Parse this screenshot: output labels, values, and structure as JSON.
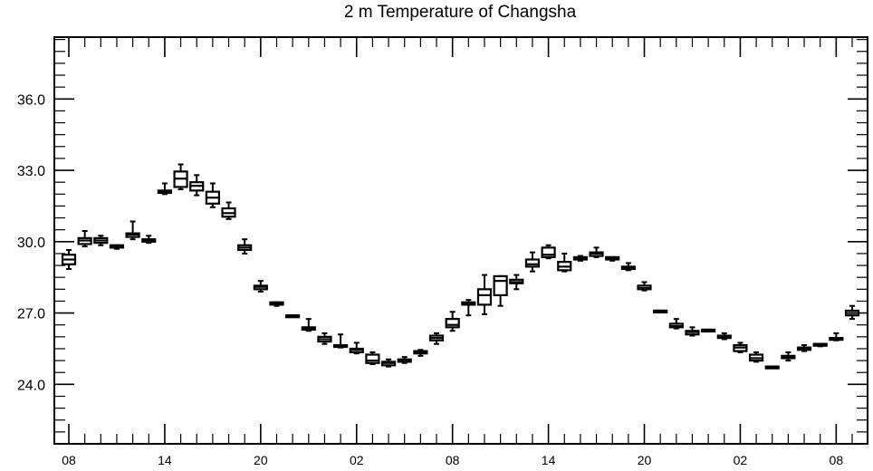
{
  "chart_data": {
    "type": "box",
    "title": "2 m Temperature of Changsha",
    "xlabel": "",
    "ylabel": "",
    "ylim": [
      21.5,
      38.6
    ],
    "y_ticks": [
      24.0,
      27.0,
      30.0,
      33.0,
      36.0
    ],
    "y_tick_labels": [
      "24.0",
      "27.0",
      "30.0",
      "33.0",
      "36.0"
    ],
    "y_minor_step": 0.5,
    "x_range": [
      0,
      49
    ],
    "x_ticks": [
      0,
      6,
      12,
      18,
      24,
      30,
      36,
      42,
      48
    ],
    "x_tick_labels": [
      "08",
      "14",
      "20",
      "02",
      "08",
      "14",
      "20",
      "02",
      "08"
    ],
    "boxes": [
      {
        "x": 0,
        "min": 28.85,
        "q1": 29.05,
        "median": 29.25,
        "q3": 29.45,
        "max": 29.65
      },
      {
        "x": 1,
        "min": 29.8,
        "q1": 29.9,
        "median": 30.05,
        "q3": 30.15,
        "max": 30.45
      },
      {
        "x": 2,
        "min": 29.85,
        "q1": 29.95,
        "median": 30.05,
        "q3": 30.15,
        "max": 30.25
      },
      {
        "x": 3,
        "min": 29.7,
        "q1": 29.75,
        "median": 29.8,
        "q3": 29.85,
        "max": 29.85
      },
      {
        "x": 4,
        "min": 30.1,
        "q1": 30.2,
        "median": 30.3,
        "q3": 30.35,
        "max": 30.85
      },
      {
        "x": 5,
        "min": 29.95,
        "q1": 30.0,
        "median": 30.05,
        "q3": 30.1,
        "max": 30.25
      },
      {
        "x": 6,
        "min": 32.0,
        "q1": 32.05,
        "median": 32.1,
        "q3": 32.15,
        "max": 32.45
      },
      {
        "x": 7,
        "min": 32.2,
        "q1": 32.3,
        "median": 32.65,
        "q3": 32.95,
        "max": 33.25
      },
      {
        "x": 8,
        "min": 31.95,
        "q1": 32.15,
        "median": 32.35,
        "q3": 32.5,
        "max": 32.8
      },
      {
        "x": 9,
        "min": 31.45,
        "q1": 31.6,
        "median": 31.85,
        "q3": 32.1,
        "max": 32.45
      },
      {
        "x": 10,
        "min": 30.95,
        "q1": 31.05,
        "median": 31.2,
        "q3": 31.4,
        "max": 31.65
      },
      {
        "x": 11,
        "min": 29.5,
        "q1": 29.65,
        "median": 29.75,
        "q3": 29.85,
        "max": 30.1
      },
      {
        "x": 12,
        "min": 27.9,
        "q1": 28.0,
        "median": 28.1,
        "q3": 28.15,
        "max": 28.35
      },
      {
        "x": 13,
        "min": 27.3,
        "q1": 27.35,
        "median": 27.4,
        "q3": 27.45,
        "max": 27.45
      },
      {
        "x": 14,
        "min": 26.85,
        "q1": 26.85,
        "median": 26.9,
        "q3": 26.9,
        "max": 26.9
      },
      {
        "x": 15,
        "min": 26.25,
        "q1": 26.3,
        "median": 26.35,
        "q3": 26.4,
        "max": 26.75
      },
      {
        "x": 16,
        "min": 25.7,
        "q1": 25.8,
        "median": 25.9,
        "q3": 26.0,
        "max": 26.15
      },
      {
        "x": 17,
        "min": 25.55,
        "q1": 25.6,
        "median": 25.6,
        "q3": 25.65,
        "max": 26.1
      },
      {
        "x": 18,
        "min": 25.3,
        "q1": 25.35,
        "median": 25.45,
        "q3": 25.5,
        "max": 25.75
      },
      {
        "x": 19,
        "min": 24.85,
        "q1": 24.9,
        "median": 25.0,
        "q3": 25.25,
        "max": 25.35
      },
      {
        "x": 20,
        "min": 24.75,
        "q1": 24.8,
        "median": 24.9,
        "q3": 24.95,
        "max": 25.05
      },
      {
        "x": 21,
        "min": 24.9,
        "q1": 24.95,
        "median": 25.0,
        "q3": 25.05,
        "max": 25.15
      },
      {
        "x": 22,
        "min": 25.2,
        "q1": 25.3,
        "median": 25.35,
        "q3": 25.4,
        "max": 25.45
      },
      {
        "x": 23,
        "min": 25.7,
        "q1": 25.85,
        "median": 25.95,
        "q3": 26.05,
        "max": 26.15
      },
      {
        "x": 24,
        "min": 26.25,
        "q1": 26.4,
        "median": 26.5,
        "q3": 26.75,
        "max": 27.05
      },
      {
        "x": 25,
        "min": 26.9,
        "q1": 27.35,
        "median": 27.4,
        "q3": 27.45,
        "max": 27.55
      },
      {
        "x": 26,
        "min": 26.95,
        "q1": 27.35,
        "median": 27.75,
        "q3": 28.0,
        "max": 28.6
      },
      {
        "x": 27,
        "min": 27.3,
        "q1": 27.75,
        "median": 28.35,
        "q3": 28.55,
        "max": 28.55
      },
      {
        "x": 28,
        "min": 28.0,
        "q1": 28.25,
        "median": 28.3,
        "q3": 28.4,
        "max": 28.6
      },
      {
        "x": 29,
        "min": 28.75,
        "q1": 28.95,
        "median": 29.05,
        "q3": 29.25,
        "max": 29.55
      },
      {
        "x": 30,
        "min": 29.3,
        "q1": 29.35,
        "median": 29.45,
        "q3": 29.75,
        "max": 29.85
      },
      {
        "x": 31,
        "min": 28.75,
        "q1": 28.8,
        "median": 28.95,
        "q3": 29.15,
        "max": 29.5
      },
      {
        "x": 32,
        "min": 29.2,
        "q1": 29.25,
        "median": 29.3,
        "q3": 29.35,
        "max": 29.4
      },
      {
        "x": 33,
        "min": 29.35,
        "q1": 29.4,
        "median": 29.5,
        "q3": 29.55,
        "max": 29.75
      },
      {
        "x": 34,
        "min": 29.2,
        "q1": 29.25,
        "median": 29.3,
        "q3": 29.35,
        "max": 29.35
      },
      {
        "x": 35,
        "min": 28.8,
        "q1": 28.85,
        "median": 28.9,
        "q3": 28.95,
        "max": 29.1
      },
      {
        "x": 36,
        "min": 27.95,
        "q1": 28.0,
        "median": 28.05,
        "q3": 28.15,
        "max": 28.3
      },
      {
        "x": 37,
        "min": 27.05,
        "q1": 27.05,
        "median": 27.1,
        "q3": 27.1,
        "max": 27.1
      },
      {
        "x": 38,
        "min": 26.35,
        "q1": 26.4,
        "median": 26.45,
        "q3": 26.55,
        "max": 26.75
      },
      {
        "x": 39,
        "min": 26.05,
        "q1": 26.1,
        "median": 26.2,
        "q3": 26.25,
        "max": 26.4
      },
      {
        "x": 40,
        "min": 26.25,
        "q1": 26.25,
        "median": 26.3,
        "q3": 26.3,
        "max": 26.3
      },
      {
        "x": 41,
        "min": 25.9,
        "q1": 25.95,
        "median": 26.0,
        "q3": 26.05,
        "max": 26.15
      },
      {
        "x": 42,
        "min": 25.35,
        "q1": 25.4,
        "median": 25.55,
        "q3": 25.65,
        "max": 25.75
      },
      {
        "x": 43,
        "min": 24.95,
        "q1": 25.0,
        "median": 25.1,
        "q3": 25.25,
        "max": 25.35
      },
      {
        "x": 44,
        "min": 24.7,
        "q1": 24.7,
        "median": 24.75,
        "q3": 24.75,
        "max": 24.75
      },
      {
        "x": 45,
        "min": 25.0,
        "q1": 25.1,
        "median": 25.15,
        "q3": 25.2,
        "max": 25.35
      },
      {
        "x": 46,
        "min": 25.4,
        "q1": 25.45,
        "median": 25.5,
        "q3": 25.55,
        "max": 25.65
      },
      {
        "x": 47,
        "min": 25.6,
        "q1": 25.65,
        "median": 25.7,
        "q3": 25.7,
        "max": 25.7
      },
      {
        "x": 48,
        "min": 25.85,
        "q1": 25.9,
        "median": 25.95,
        "q3": 25.95,
        "max": 26.15
      },
      {
        "x": 49,
        "min": 26.75,
        "q1": 26.9,
        "median": 27.0,
        "q3": 27.1,
        "max": 27.3
      }
    ],
    "grid": false,
    "legend": "none"
  }
}
